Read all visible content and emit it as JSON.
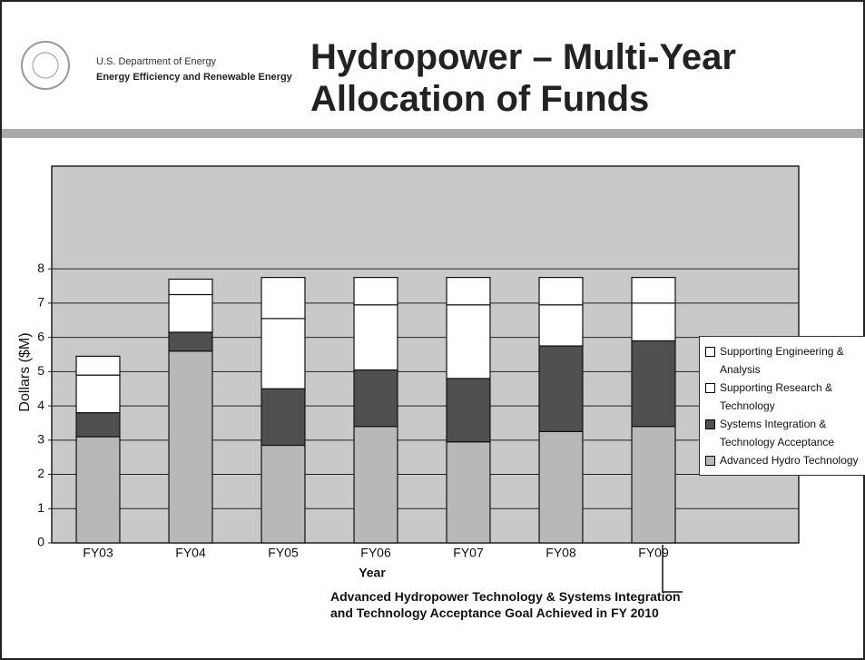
{
  "header": {
    "org": "U.S. Department of Energy",
    "office": "Energy Efficiency and Renewable Energy"
  },
  "chart_data": {
    "type": "stacked_bar",
    "title": "Hydropower – Multi-Year Allocation of Funds",
    "categories": [
      "FY03",
      "FY04",
      "FY05",
      "FY06",
      "FY07",
      "FY08",
      "FY09"
    ],
    "series": [
      {
        "name": "Advanced Hydro Technology",
        "color": "#b8b8b8",
        "values": [
          3.1,
          5.6,
          2.85,
          3.4,
          2.95,
          3.25,
          3.4
        ]
      },
      {
        "name": "Systems Integration & Technology Acceptance",
        "color": "#505050",
        "values": [
          0.7,
          0.55,
          1.65,
          1.65,
          1.85,
          2.5,
          2.5
        ]
      },
      {
        "name": "Supporting Research & Technology",
        "color": "#ffffff",
        "values": [
          1.1,
          1.1,
          2.05,
          1.9,
          2.15,
          1.2,
          1.1
        ]
      },
      {
        "name": "Supporting Engineering & Analysis",
        "color": "#ffffff",
        "values": [
          0.55,
          0.45,
          1.2,
          0.8,
          0.8,
          0.8,
          0.75
        ]
      }
    ],
    "ylim": [
      0,
      11
    ],
    "yticks": [
      0,
      1,
      2,
      3,
      4,
      5,
      6,
      7,
      8
    ],
    "grid": true,
    "ylabel": "Dollars ($M)",
    "xlabel": "Year",
    "annotation": "Advanced Hydropower Technology & Systems Integration and Technology Acceptance Goal Achieved in FY 2010"
  }
}
